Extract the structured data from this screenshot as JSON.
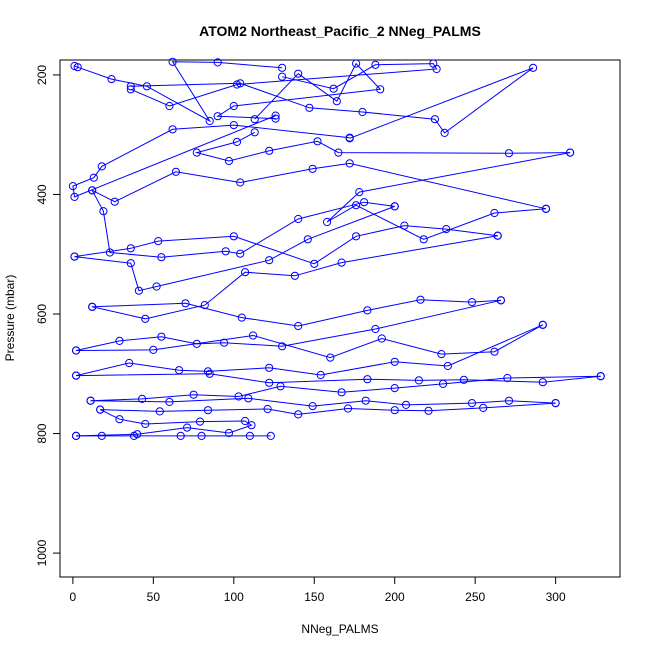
{
  "chart_data": {
    "type": "line",
    "title": "ATOM2 Northeast_Pacific_2 NNeg_PALMS",
    "xlabel": "NNeg_PALMS",
    "ylabel": "Pressure (mbar)",
    "xlim": [
      -8,
      340
    ],
    "ylim": [
      1040,
      175
    ],
    "y_inverted": true,
    "x_ticks": [
      0,
      50,
      100,
      150,
      200,
      250,
      300
    ],
    "y_ticks": [
      200,
      400,
      600,
      800,
      1000
    ],
    "grid": false,
    "legend": "none",
    "series_color": "#0000ff",
    "marker": "open-circle",
    "series": [
      {
        "x": [
          1,
          3,
          24,
          46,
          85,
          62,
          90,
          130
        ],
        "y": [
          185,
          187,
          207,
          219,
          277,
          178,
          179,
          188
        ]
      },
      {
        "x": [
          130,
          162,
          188,
          224,
          226,
          102,
          60,
          36
        ],
        "y": [
          203,
          223,
          183,
          181,
          190,
          216,
          252,
          224
        ]
      },
      {
        "x": [
          36,
          104,
          147,
          180,
          225,
          231,
          286,
          172
        ],
        "y": [
          219,
          214,
          255,
          262,
          274,
          297,
          188,
          306
        ]
      },
      {
        "x": [
          172,
          100,
          62,
          18,
          13,
          0,
          1,
          126
        ],
        "y": [
          305,
          284,
          291,
          353,
          372,
          386,
          404,
          268
        ]
      },
      {
        "x": [
          126,
          90,
          100,
          191,
          176,
          164,
          140,
          113
        ],
        "y": [
          273,
          269,
          252,
          224,
          181,
          244,
          198,
          274
        ]
      },
      {
        "x": [
          113,
          102,
          77,
          97,
          122,
          152,
          165,
          271,
          309
        ],
        "y": [
          296,
          312,
          330,
          344,
          327,
          311,
          330,
          331,
          330
        ]
      },
      {
        "x": [
          309,
          178,
          158,
          176,
          218,
          262,
          294
        ],
        "y": [
          330,
          396,
          446,
          418,
          475,
          431,
          424
        ]
      },
      {
        "x": [
          294,
          172,
          149,
          104,
          64,
          26,
          12
        ],
        "y": [
          424,
          348,
          357,
          380,
          362,
          412,
          393
        ]
      },
      {
        "x": [
          12,
          19,
          23,
          55,
          95,
          104,
          140,
          181,
          200
        ],
        "y": [
          393,
          428,
          497,
          505,
          495,
          499,
          441,
          413,
          420
        ]
      },
      {
        "x": [
          200,
          146,
          122,
          52,
          41,
          36,
          1
        ],
        "y": [
          420,
          475,
          510,
          554,
          561,
          515,
          504
        ]
      },
      {
        "x": [
          1,
          36,
          53,
          100,
          150,
          176,
          206,
          232,
          264
        ],
        "y": [
          504,
          490,
          478,
          470,
          516,
          470,
          452,
          458,
          469
        ]
      },
      {
        "x": [
          264,
          167,
          138,
          107,
          82,
          45,
          12
        ],
        "y": [
          469,
          514,
          536,
          530,
          585,
          608,
          588
        ]
      },
      {
        "x": [
          12,
          70,
          105,
          140,
          183,
          216,
          248,
          266
        ],
        "y": [
          588,
          582,
          606,
          620,
          594,
          576,
          580,
          577
        ]
      },
      {
        "x": [
          266,
          188,
          130,
          94,
          77,
          55,
          29,
          2
        ],
        "y": [
          577,
          625,
          654,
          648,
          650,
          638,
          645,
          661
        ]
      },
      {
        "x": [
          2,
          50,
          112,
          160,
          192,
          229,
          262,
          292
        ],
        "y": [
          661,
          660,
          636,
          673,
          641,
          667,
          663,
          618
        ]
      },
      {
        "x": [
          292,
          233,
          200,
          154,
          122,
          84,
          66,
          35,
          2
        ],
        "y": [
          618,
          687,
          680,
          702,
          690,
          696,
          694,
          682,
          703
        ]
      },
      {
        "x": [
          2,
          85,
          122,
          183,
          215,
          243,
          292,
          328
        ],
        "y": [
          703,
          700,
          715,
          709,
          711,
          710,
          714,
          704
        ]
      },
      {
        "x": [
          328,
          270,
          230,
          200,
          167,
          129,
          103,
          75,
          43,
          11
        ],
        "y": [
          704,
          707,
          717,
          724,
          731,
          721,
          738,
          735,
          742,
          745
        ]
      },
      {
        "x": [
          11,
          60,
          109,
          149,
          182,
          207,
          248,
          271,
          300
        ],
        "y": [
          745,
          747,
          741,
          754,
          745,
          752,
          749,
          745,
          749
        ]
      },
      {
        "x": [
          300,
          255,
          221,
          200,
          171,
          140,
          121,
          84,
          54,
          17
        ],
        "y": [
          749,
          757,
          762,
          761,
          758,
          768,
          759,
          761,
          763,
          760
        ]
      },
      {
        "x": [
          17,
          29,
          45,
          79,
          107,
          111,
          97,
          71,
          40,
          2
        ],
        "y": [
          760,
          776,
          784,
          780,
          779,
          786,
          799,
          790,
          801,
          804
        ]
      },
      {
        "x": [
          2,
          18,
          38,
          67,
          80,
          110,
          123
        ],
        "y": [
          804,
          804,
          804,
          804,
          804,
          804,
          804
        ]
      }
    ]
  }
}
